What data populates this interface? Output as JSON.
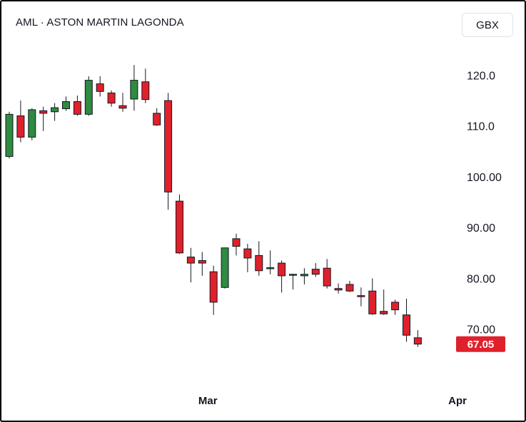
{
  "header": {
    "title": "AML · ASTON MARTIN LAGONDA",
    "currency": "GBX"
  },
  "colors": {
    "up": "#2e8b3f",
    "down": "#e0212b",
    "wick": "#131722",
    "price_label_bg": "#e0212b"
  },
  "chart_data": {
    "type": "candlestick",
    "ylim": [
      55.5,
      132
    ],
    "yticks": [
      "120.0",
      "110.0",
      "100.00",
      "90.00",
      "80.00",
      "70.00"
    ],
    "ytick_values": [
      120,
      110,
      100,
      90,
      80,
      70
    ],
    "xticks": [
      "Mar",
      "Apr"
    ],
    "xtick_index": [
      17.5,
      39.5
    ],
    "last_price": "67.05",
    "last_price_value": 67.05,
    "candles": [
      {
        "o": 104.0,
        "h": 112.8,
        "l": 103.6,
        "c": 112.3
      },
      {
        "o": 112.0,
        "h": 115.0,
        "l": 106.8,
        "c": 107.8
      },
      {
        "o": 107.8,
        "h": 113.5,
        "l": 107.2,
        "c": 113.2
      },
      {
        "o": 113.0,
        "h": 113.8,
        "l": 109.0,
        "c": 112.5
      },
      {
        "o": 112.8,
        "h": 114.5,
        "l": 111.0,
        "c": 113.6
      },
      {
        "o": 113.4,
        "h": 115.8,
        "l": 113.0,
        "c": 114.8
      },
      {
        "o": 114.8,
        "h": 116.0,
        "l": 112.0,
        "c": 112.3
      },
      {
        "o": 112.3,
        "h": 119.8,
        "l": 112.0,
        "c": 119.0
      },
      {
        "o": 118.3,
        "h": 119.8,
        "l": 115.8,
        "c": 116.8
      },
      {
        "o": 116.5,
        "h": 117.0,
        "l": 113.8,
        "c": 114.5
      },
      {
        "o": 114.0,
        "h": 116.5,
        "l": 112.8,
        "c": 113.5
      },
      {
        "o": 115.3,
        "h": 122.0,
        "l": 113.0,
        "c": 119.0
      },
      {
        "o": 118.7,
        "h": 121.3,
        "l": 114.5,
        "c": 115.2
      },
      {
        "o": 112.5,
        "h": 113.5,
        "l": 110.0,
        "c": 110.2
      },
      {
        "o": 115.0,
        "h": 116.5,
        "l": 93.5,
        "c": 97.0
      },
      {
        "o": 95.2,
        "h": 96.5,
        "l": 84.8,
        "c": 85.0
      },
      {
        "o": 84.2,
        "h": 86.0,
        "l": 79.2,
        "c": 83.0
      },
      {
        "o": 83.5,
        "h": 85.2,
        "l": 80.5,
        "c": 83.0
      },
      {
        "o": 81.3,
        "h": 82.5,
        "l": 72.8,
        "c": 75.3
      },
      {
        "o": 78.2,
        "h": 86.0,
        "l": 78.0,
        "c": 86.0
      },
      {
        "o": 87.8,
        "h": 88.8,
        "l": 84.5,
        "c": 86.3
      },
      {
        "o": 85.8,
        "h": 86.8,
        "l": 81.2,
        "c": 84.0
      },
      {
        "o": 84.5,
        "h": 87.3,
        "l": 80.5,
        "c": 81.5
      },
      {
        "o": 81.9,
        "h": 85.5,
        "l": 80.8,
        "c": 82.1
      },
      {
        "o": 83.0,
        "h": 83.5,
        "l": 77.2,
        "c": 80.5
      },
      {
        "o": 80.6,
        "h": 80.9,
        "l": 77.8,
        "c": 80.8
      },
      {
        "o": 80.5,
        "h": 82.0,
        "l": 78.8,
        "c": 80.8
      },
      {
        "o": 81.8,
        "h": 83.0,
        "l": 80.3,
        "c": 80.8
      },
      {
        "o": 82.0,
        "h": 83.8,
        "l": 78.0,
        "c": 78.5
      },
      {
        "o": 78.0,
        "h": 79.0,
        "l": 77.0,
        "c": 77.7
      },
      {
        "o": 78.8,
        "h": 79.5,
        "l": 77.3,
        "c": 77.5
      },
      {
        "o": 76.6,
        "h": 78.2,
        "l": 74.5,
        "c": 76.4
      },
      {
        "o": 77.5,
        "h": 80.0,
        "l": 72.8,
        "c": 73.0
      },
      {
        "o": 73.5,
        "h": 77.8,
        "l": 72.8,
        "c": 73.0
      },
      {
        "o": 75.3,
        "h": 75.8,
        "l": 72.8,
        "c": 73.8
      },
      {
        "o": 72.8,
        "h": 76.0,
        "l": 67.5,
        "c": 68.8
      },
      {
        "o": 68.3,
        "h": 69.8,
        "l": 66.5,
        "c": 67.05
      }
    ]
  }
}
